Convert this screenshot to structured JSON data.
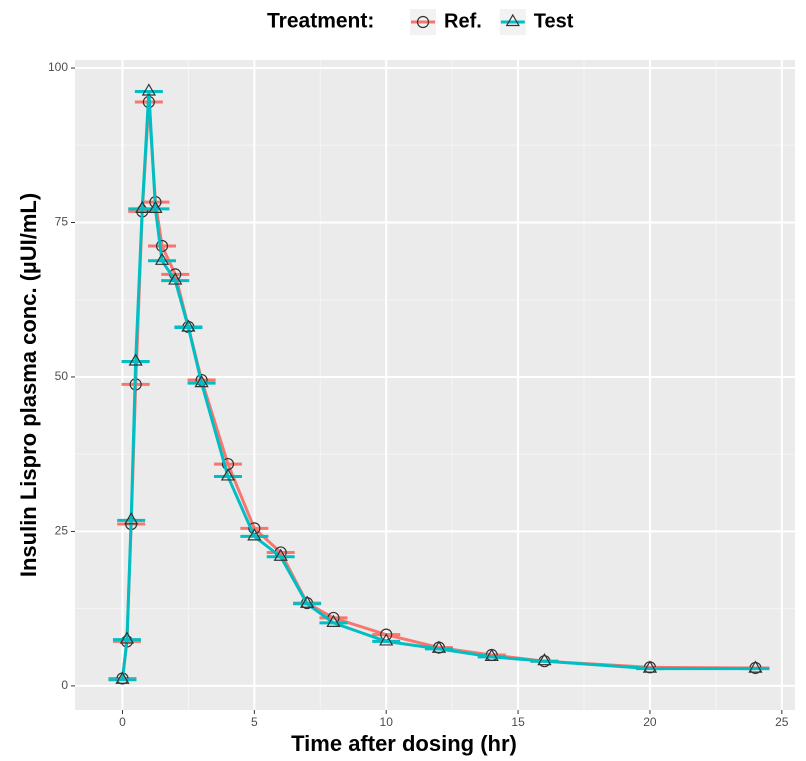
{
  "chart_data": {
    "type": "line",
    "legend_title": "Treatment:",
    "legend_position": "top",
    "x_label": "Time after dosing (hr)",
    "y_label": "Insulin Lispro plasma conc. (µUI/mL)",
    "x": [
      0,
      0.17,
      0.33,
      0.5,
      0.75,
      1,
      1.25,
      1.5,
      2,
      2.5,
      3,
      4,
      5,
      6,
      7,
      8,
      10,
      12,
      14,
      16,
      20,
      24
    ],
    "series": [
      {
        "name": "Ref.",
        "color": "#f8766d",
        "marker": "circle",
        "values": [
          1.2,
          7.2,
          26.2,
          48.8,
          76.8,
          94.5,
          78.3,
          71.2,
          66.6,
          58.1,
          49.5,
          35.9,
          25.5,
          21.6,
          13.4,
          11.0,
          8.3,
          6.2,
          5.0,
          4.0,
          3.0,
          2.9
        ]
      },
      {
        "name": "Test",
        "color": "#00bfc4",
        "marker": "triangle",
        "values": [
          1.0,
          7.5,
          26.8,
          52.5,
          77.2,
          96.2,
          77.2,
          68.8,
          65.6,
          58.0,
          49.0,
          33.9,
          24.2,
          20.9,
          13.3,
          10.2,
          7.2,
          6.0,
          4.7,
          4.0,
          2.8,
          2.8
        ]
      }
    ],
    "xlim": [
      -1.8,
      25.5
    ],
    "xticks": [
      0,
      5,
      10,
      15,
      20,
      25
    ],
    "ylim": [
      -3.9,
      101.3
    ],
    "yticks": [
      0,
      25,
      50,
      75,
      100
    ],
    "grid": true
  }
}
